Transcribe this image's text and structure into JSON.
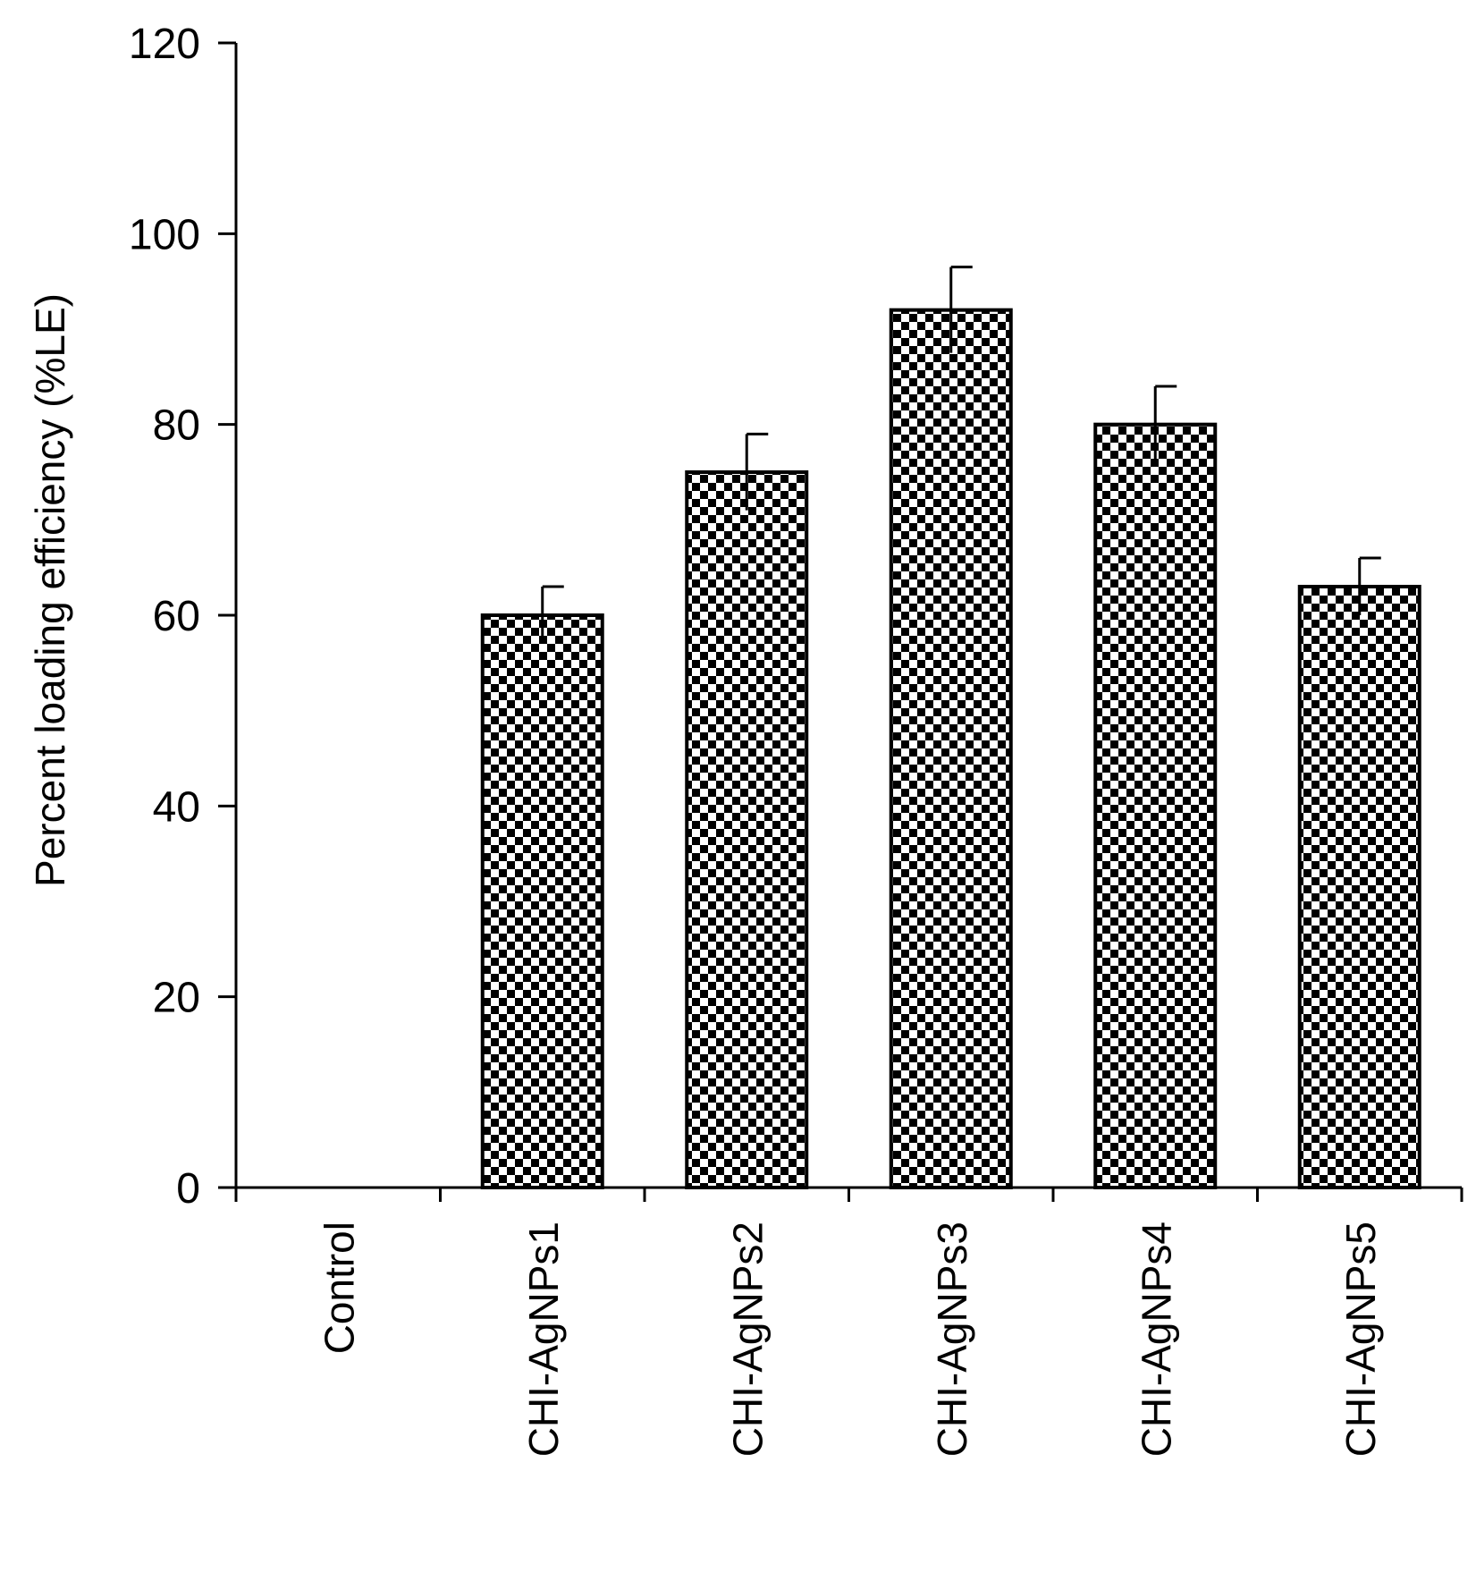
{
  "chart_data": {
    "type": "bar",
    "categories": [
      "Control",
      "CHI-AgNPs1",
      "CHI-AgNPs2",
      "CHI-AgNPs3",
      "CHI-AgNPs4",
      "CHI-AgNPs5"
    ],
    "values": [
      0,
      60,
      75,
      92,
      80,
      63
    ],
    "errors": [
      0,
      3,
      4,
      4.5,
      4,
      3
    ],
    "title": "",
    "xlabel": "",
    "ylabel": "Percent loading efficiency (%LE)",
    "ylim": [
      0,
      120
    ],
    "yticks": [
      0,
      20,
      40,
      60,
      80,
      100,
      120
    ],
    "grid": false,
    "bar_fill": "checkerboard",
    "colors": {
      "bar_dark": "#000000",
      "bar_light": "#ffffff",
      "axis": "#000000"
    }
  }
}
